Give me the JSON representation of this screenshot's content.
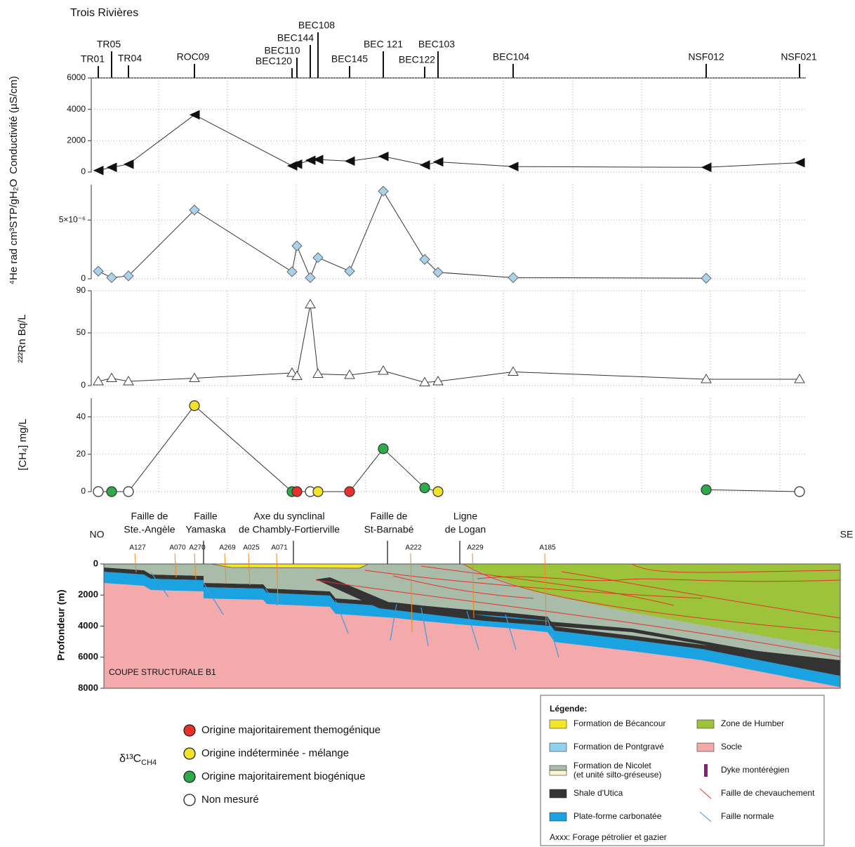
{
  "title": "Trois Rivières",
  "chart_data": [
    {
      "type": "line",
      "y_label": "Conductivité (µS/cm)",
      "marker": "triangle-left",
      "color": "#111111",
      "line_color": "#333333",
      "categories": [
        "TR01",
        "TR05",
        "TR04",
        "ROC09",
        "BEC120",
        "BEC110",
        "BEC144",
        "BEC108",
        "BEC145",
        "BEC 121",
        "BEC122",
        "BEC103",
        "BEC104",
        "NSF012",
        "NSF021"
      ],
      "values": [
        100,
        300,
        500,
        3650,
        400,
        500,
        750,
        800,
        700,
        1000,
        450,
        650,
        350,
        300,
        600
      ],
      "ylim": [
        0,
        6000
      ],
      "yticks": [
        0,
        2000,
        4000,
        6000
      ],
      "grid": true
    },
    {
      "type": "line",
      "y_label": "⁴He rad cm³STP/gH₂O",
      "marker": "diamond",
      "color": "#a9d3ec",
      "line_color": "#333333",
      "values": [
        6.5e-07,
        1e-07,
        2.5e-07,
        5.85e-06,
        6e-07,
        2.8e-06,
        1e-07,
        1.8e-06,
        6.5e-07,
        7.45e-06,
        1.65e-06,
        5.5e-07,
        1e-07,
        5e-08,
        null
      ],
      "ylim": [
        0,
        8e-06
      ],
      "yticks": [
        0,
        {
          "value": 5e-06,
          "label": "5×10⁻⁶"
        }
      ],
      "grid": true
    },
    {
      "type": "line",
      "y_label": "²²²Rn Bq/L",
      "marker": "triangle-up",
      "color": "#ffffff",
      "line_color": "#333333",
      "values": [
        4,
        7,
        4,
        7,
        12,
        9,
        77,
        11,
        10,
        14,
        3,
        4,
        13,
        6,
        6
      ],
      "ylim": [
        0,
        90
      ],
      "yticks": [
        0,
        50,
        90
      ],
      "grid": true
    },
    {
      "type": "line",
      "y_label": "[CH₄] mg/L",
      "marker": "circle",
      "line_color": "#333333",
      "values": [
        0,
        0,
        0,
        46,
        0,
        0,
        0,
        0,
        0,
        23,
        2,
        0,
        null,
        1,
        0
      ],
      "point_colors": [
        "#ffffff",
        "#2eaa4a",
        "#ffffff",
        "#f2e22b",
        "#2eaa4a",
        "#e8312a",
        "#ffffff",
        "#f2e22b",
        "#e8312a",
        "#2eaa4a",
        "#2eaa4a",
        "#f2e22b",
        null,
        "#2eaa4a",
        "#ffffff"
      ],
      "ylim": [
        0,
        50
      ],
      "yticks": [
        0,
        20,
        40
      ],
      "grid": true
    }
  ],
  "cross_section": {
    "title": "COUPE STRUCTURALE B1",
    "y_label": "Profondeur (m)",
    "left": "NO",
    "right": "SE",
    "ylim": [
      0,
      8000
    ],
    "yticks": [
      0,
      2000,
      4000,
      6000,
      8000
    ],
    "faults": [
      [
        "Faille de",
        "Ste.-Angèle"
      ],
      [
        "Faille",
        "Yamaska"
      ],
      [
        "Axe du synclinal",
        "de Chambly-Fortierville"
      ],
      [
        "Faille de",
        "St-Barnabé"
      ],
      [
        "Ligne",
        "de Logan"
      ]
    ],
    "wells": [
      "A127",
      "A070",
      "A270",
      "A269",
      "A025",
      "A071",
      "A222",
      "A229",
      "A185"
    ]
  },
  "ch4_legend": {
    "symbol": "δ¹³C",
    "subscript": "CH4",
    "items": [
      {
        "label": "Origine majoritairement themogénique",
        "color": "#e8312a"
      },
      {
        "label": "Origine indéterminée - mélange",
        "color": "#f2e22b"
      },
      {
        "label": "Origine majoritairement biogénique",
        "color": "#2eaa4a"
      },
      {
        "label": "Non mesuré",
        "color": "#ffffff"
      }
    ]
  },
  "geology_legend": {
    "title": "Légende:",
    "items": [
      {
        "label": "Formation de Bécancour",
        "color": "#f5e62a",
        "symbol": "box"
      },
      {
        "label": "Zone de Humber",
        "color": "#9dc33b",
        "symbol": "box"
      },
      {
        "label": "Formation de Pontgravé",
        "color": "#8fd3f0",
        "symbol": "box"
      },
      {
        "label": "Socle",
        "color": "#f4a9aa",
        "symbol": "box"
      },
      {
        "label": "Formation de Nicolet",
        "sublabel": "(et unité silto-gréseuse)",
        "color": "#a9bba9",
        "color2": "#fdf5d0",
        "symbol": "box"
      },
      {
        "label": "Dyke montérégien",
        "color": "#8b1a7a",
        "symbol": "bar"
      },
      {
        "label": "Shale d'Utica",
        "color": "#333333",
        "symbol": "box"
      },
      {
        "label": "Faille de chevauchement",
        "color": "#e8312a",
        "symbol": "line"
      },
      {
        "label": "Plate-forme carbonatée",
        "color": "#1aa3e0",
        "symbol": "box"
      },
      {
        "label": "Faille normale",
        "color": "#3f9be0",
        "symbol": "line"
      }
    ],
    "note": "Axxx: Forage pétrolier et gazier"
  }
}
